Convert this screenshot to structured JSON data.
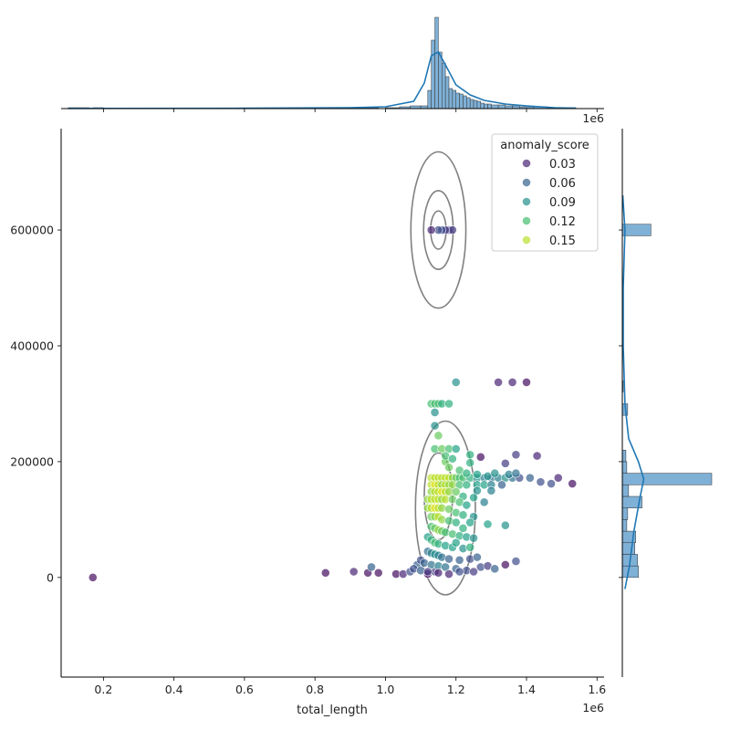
{
  "chart_data": {
    "type": "scatter",
    "title": "",
    "xlabel": "total_length",
    "ylabel": "",
    "x_offset_label": "1e6",
    "top_offset_label": "1e6",
    "xlim": [
      0.08,
      1.62
    ],
    "ylim": [
      -172000,
      775000
    ],
    "x_ticks": [
      0.2,
      0.4,
      0.6,
      0.8,
      1.0,
      1.2,
      1.4,
      1.6
    ],
    "x_tick_labels": [
      "0.2",
      "0.4",
      "0.6",
      "0.8",
      "1.0",
      "1.2",
      "1.4",
      "1.6"
    ],
    "y_ticks": [
      0,
      200000,
      400000,
      600000
    ],
    "y_tick_labels": [
      "0",
      "200000",
      "400000",
      "600000"
    ],
    "grid": false,
    "legend": {
      "title": "anomaly_score",
      "placement": "top-right",
      "entries": [
        {
          "label": "0.03",
          "value": 0.03
        },
        {
          "label": "0.06",
          "value": 0.06
        },
        {
          "label": "0.09",
          "value": 0.09
        },
        {
          "label": "0.12",
          "value": 0.12
        },
        {
          "label": "0.15",
          "value": 0.15
        }
      ]
    },
    "colormap": "viridis",
    "color_range": [
      0.015,
      0.165
    ],
    "point_color_alpha": 0.7,
    "points": [
      [
        0.17,
        0,
        0.02
      ],
      [
        0.83,
        8000,
        0.02
      ],
      [
        0.91,
        10000,
        0.03
      ],
      [
        0.95,
        8000,
        0.02
      ],
      [
        0.98,
        8000,
        0.02
      ],
      [
        1.03,
        6000,
        0.02
      ],
      [
        1.05,
        6000,
        0.03
      ],
      [
        1.07,
        10000,
        0.05
      ],
      [
        1.09,
        22000,
        0.06
      ],
      [
        1.12,
        6000,
        0.02
      ],
      [
        1.14,
        10000,
        0.04
      ],
      [
        0.96,
        18000,
        0.06
      ],
      [
        1.18,
        600000,
        0.04
      ],
      [
        1.19,
        600000,
        0.04
      ],
      [
        1.17,
        600000,
        0.04
      ],
      [
        1.16,
        600000,
        0.05
      ],
      [
        1.15,
        600000,
        0.05
      ],
      [
        1.13,
        600000,
        0.03
      ],
      [
        1.2,
        337000,
        0.09
      ],
      [
        1.32,
        337000,
        0.03
      ],
      [
        1.36,
        337000,
        0.03
      ],
      [
        1.4,
        337000,
        0.02
      ],
      [
        1.13,
        300000,
        0.12
      ],
      [
        1.14,
        300000,
        0.12
      ],
      [
        1.15,
        300000,
        0.12
      ],
      [
        1.16,
        300000,
        0.11
      ],
      [
        1.18,
        300000,
        0.11
      ],
      [
        1.14,
        285000,
        0.09
      ],
      [
        1.14,
        262000,
        0.09
      ],
      [
        1.15,
        245000,
        0.13
      ],
      [
        1.14,
        222000,
        0.12
      ],
      [
        1.16,
        222000,
        0.13
      ],
      [
        1.18,
        222000,
        0.12
      ],
      [
        1.2,
        222000,
        0.1
      ],
      [
        1.24,
        212000,
        0.11
      ],
      [
        1.27,
        208000,
        0.02
      ],
      [
        1.34,
        197000,
        0.04
      ],
      [
        1.37,
        212000,
        0.04
      ],
      [
        1.43,
        210000,
        0.03
      ],
      [
        1.13,
        172000,
        0.15
      ],
      [
        1.14,
        172000,
        0.15
      ],
      [
        1.15,
        172000,
        0.15
      ],
      [
        1.16,
        172000,
        0.15
      ],
      [
        1.17,
        172000,
        0.15
      ],
      [
        1.18,
        172000,
        0.15
      ],
      [
        1.19,
        172000,
        0.14
      ],
      [
        1.2,
        172000,
        0.13
      ],
      [
        1.21,
        172000,
        0.12
      ],
      [
        1.22,
        172000,
        0.12
      ],
      [
        1.24,
        172000,
        0.11
      ],
      [
        1.26,
        172000,
        0.09
      ],
      [
        1.28,
        172000,
        0.08
      ],
      [
        1.3,
        172000,
        0.07
      ],
      [
        1.32,
        172000,
        0.08
      ],
      [
        1.34,
        172000,
        0.09
      ],
      [
        1.36,
        172000,
        0.07
      ],
      [
        1.38,
        172000,
        0.05
      ],
      [
        1.41,
        172000,
        0.06
      ],
      [
        1.44,
        165000,
        0.05
      ],
      [
        1.47,
        162000,
        0.05
      ],
      [
        1.49,
        172000,
        0.03
      ],
      [
        1.53,
        162000,
        0.02
      ],
      [
        1.13,
        160000,
        0.15
      ],
      [
        1.14,
        160000,
        0.16
      ],
      [
        1.15,
        160000,
        0.15
      ],
      [
        1.16,
        160000,
        0.14
      ],
      [
        1.17,
        160000,
        0.15
      ],
      [
        1.18,
        160000,
        0.14
      ],
      [
        1.19,
        160000,
        0.14
      ],
      [
        1.21,
        160000,
        0.12
      ],
      [
        1.23,
        160000,
        0.11
      ],
      [
        1.26,
        160000,
        0.1
      ],
      [
        1.28,
        160000,
        0.1
      ],
      [
        1.3,
        160000,
        0.08
      ],
      [
        1.33,
        160000,
        0.06
      ],
      [
        1.13,
        148000,
        0.14
      ],
      [
        1.14,
        148000,
        0.15
      ],
      [
        1.15,
        148000,
        0.15
      ],
      [
        1.16,
        148000,
        0.16
      ],
      [
        1.17,
        148000,
        0.15
      ],
      [
        1.18,
        148000,
        0.14
      ],
      [
        1.2,
        148000,
        0.13
      ],
      [
        1.22,
        140000,
        0.11
      ],
      [
        1.25,
        138000,
        0.1
      ],
      [
        1.3,
        150000,
        0.08
      ],
      [
        1.12,
        135000,
        0.14
      ],
      [
        1.13,
        135000,
        0.15
      ],
      [
        1.14,
        135000,
        0.15
      ],
      [
        1.15,
        135000,
        0.15
      ],
      [
        1.16,
        135000,
        0.14
      ],
      [
        1.17,
        135000,
        0.15
      ],
      [
        1.19,
        135000,
        0.13
      ],
      [
        1.21,
        130000,
        0.12
      ],
      [
        1.23,
        125000,
        0.1
      ],
      [
        1.12,
        120000,
        0.14
      ],
      [
        1.13,
        120000,
        0.15
      ],
      [
        1.14,
        120000,
        0.16
      ],
      [
        1.15,
        120000,
        0.15
      ],
      [
        1.16,
        120000,
        0.14
      ],
      [
        1.18,
        118000,
        0.13
      ],
      [
        1.2,
        112000,
        0.12
      ],
      [
        1.22,
        108000,
        0.11
      ],
      [
        1.25,
        105000,
        0.09
      ],
      [
        1.13,
        105000,
        0.13
      ],
      [
        1.14,
        105000,
        0.14
      ],
      [
        1.15,
        105000,
        0.15
      ],
      [
        1.16,
        100000,
        0.14
      ],
      [
        1.18,
        98000,
        0.12
      ],
      [
        1.2,
        95000,
        0.11
      ],
      [
        1.29,
        92000,
        0.1
      ],
      [
        1.34,
        90000,
        0.09
      ],
      [
        1.13,
        88000,
        0.12
      ],
      [
        1.14,
        85000,
        0.13
      ],
      [
        1.15,
        82000,
        0.14
      ],
      [
        1.16,
        80000,
        0.13
      ],
      [
        1.17,
        78000,
        0.12
      ],
      [
        1.19,
        75000,
        0.12
      ],
      [
        1.21,
        72000,
        0.11
      ],
      [
        1.23,
        70000,
        0.1
      ],
      [
        1.25,
        68000,
        0.09
      ],
      [
        1.12,
        70000,
        0.1
      ],
      [
        1.13,
        65000,
        0.11
      ],
      [
        1.14,
        60000,
        0.12
      ],
      [
        1.15,
        58000,
        0.11
      ],
      [
        1.17,
        55000,
        0.1
      ],
      [
        1.19,
        52000,
        0.1
      ],
      [
        1.22,
        50000,
        0.09
      ],
      [
        1.24,
        52000,
        0.11
      ],
      [
        1.12,
        45000,
        0.07
      ],
      [
        1.13,
        42000,
        0.08
      ],
      [
        1.14,
        40000,
        0.09
      ],
      [
        1.15,
        38000,
        0.08
      ],
      [
        1.16,
        35000,
        0.07
      ],
      [
        1.18,
        32000,
        0.06
      ],
      [
        1.21,
        30000,
        0.06
      ],
      [
        1.24,
        32000,
        0.05
      ],
      [
        1.26,
        35000,
        0.06
      ],
      [
        1.1,
        30000,
        0.05
      ],
      [
        1.11,
        25000,
        0.06
      ],
      [
        1.13,
        22000,
        0.07
      ],
      [
        1.15,
        20000,
        0.08
      ],
      [
        1.17,
        18000,
        0.07
      ],
      [
        1.2,
        15000,
        0.06
      ],
      [
        1.23,
        12000,
        0.05
      ],
      [
        1.25,
        10000,
        0.04
      ],
      [
        1.27,
        18000,
        0.05
      ],
      [
        1.29,
        20000,
        0.04
      ],
      [
        1.31,
        15000,
        0.06
      ],
      [
        1.34,
        22000,
        0.02
      ],
      [
        1.37,
        28000,
        0.05
      ],
      [
        1.08,
        15000,
        0.05
      ],
      [
        1.1,
        12000,
        0.06
      ],
      [
        1.12,
        10000,
        0.04
      ],
      [
        1.15,
        8000,
        0.03
      ],
      [
        1.18,
        6000,
        0.03
      ],
      [
        1.21,
        10000,
        0.05
      ],
      [
        1.2,
        60000,
        0.1
      ],
      [
        1.22,
        85000,
        0.11
      ],
      [
        1.24,
        95000,
        0.1
      ],
      [
        1.17,
        200000,
        0.13
      ],
      [
        1.18,
        190000,
        0.13
      ],
      [
        1.21,
        185000,
        0.12
      ],
      [
        1.23,
        180000,
        0.11
      ],
      [
        1.26,
        178000,
        0.1
      ],
      [
        1.29,
        175000,
        0.09
      ],
      [
        1.31,
        180000,
        0.09
      ],
      [
        1.35,
        178000,
        0.08
      ],
      [
        1.37,
        180000,
        0.07
      ],
      [
        1.26,
        150000,
        0.09
      ],
      [
        1.28,
        130000,
        0.08
      ],
      [
        1.24,
        198000,
        0.11
      ],
      [
        1.17,
        210000,
        0.12
      ],
      [
        1.19,
        205000,
        0.11
      ]
    ],
    "top_histogram": {
      "bins": [
        [
          0.1,
          0.16,
          1
        ],
        [
          0.17,
          0.2,
          1
        ],
        [
          0.8,
          0.84,
          1
        ],
        [
          0.9,
          0.95,
          1
        ],
        [
          0.95,
          0.98,
          1
        ],
        [
          1.0,
          1.04,
          1
        ],
        [
          1.04,
          1.07,
          2
        ],
        [
          1.07,
          1.1,
          3
        ],
        [
          1.1,
          1.12,
          3
        ],
        [
          1.12,
          1.13,
          20
        ],
        [
          1.13,
          1.14,
          75
        ],
        [
          1.14,
          1.15,
          100
        ],
        [
          1.15,
          1.16,
          62
        ],
        [
          1.16,
          1.17,
          50
        ],
        [
          1.17,
          1.18,
          35
        ],
        [
          1.18,
          1.19,
          22
        ],
        [
          1.19,
          1.2,
          20
        ],
        [
          1.2,
          1.21,
          17
        ],
        [
          1.21,
          1.22,
          16
        ],
        [
          1.22,
          1.23,
          14
        ],
        [
          1.23,
          1.24,
          12
        ],
        [
          1.24,
          1.25,
          10
        ],
        [
          1.25,
          1.26,
          9
        ],
        [
          1.26,
          1.27,
          8
        ],
        [
          1.27,
          1.28,
          6
        ],
        [
          1.28,
          1.29,
          5
        ],
        [
          1.29,
          1.3,
          5
        ],
        [
          1.3,
          1.32,
          4
        ],
        [
          1.32,
          1.34,
          4
        ],
        [
          1.34,
          1.36,
          3
        ],
        [
          1.36,
          1.38,
          3
        ],
        [
          1.38,
          1.42,
          2
        ],
        [
          1.42,
          1.46,
          2
        ],
        [
          1.46,
          1.5,
          1
        ],
        [
          1.5,
          1.54,
          1
        ]
      ],
      "kde": [
        [
          0.1,
          0.2
        ],
        [
          0.6,
          0.4
        ],
        [
          0.9,
          1
        ],
        [
          1.0,
          2
        ],
        [
          1.08,
          8
        ],
        [
          1.11,
          28
        ],
        [
          1.13,
          58
        ],
        [
          1.15,
          62
        ],
        [
          1.17,
          48
        ],
        [
          1.2,
          26
        ],
        [
          1.24,
          15
        ],
        [
          1.28,
          9
        ],
        [
          1.34,
          5
        ],
        [
          1.4,
          3
        ],
        [
          1.48,
          1
        ],
        [
          1.54,
          0.5
        ]
      ],
      "max": 100
    },
    "right_histogram": {
      "bins": [
        [
          0,
          20000,
          18
        ],
        [
          20000,
          40000,
          17
        ],
        [
          40000,
          60000,
          14
        ],
        [
          60000,
          80000,
          15
        ],
        [
          80000,
          100000,
          5
        ],
        [
          100000,
          120000,
          6
        ],
        [
          120000,
          140000,
          22
        ],
        [
          140000,
          160000,
          7
        ],
        [
          160000,
          180000,
          100
        ],
        [
          180000,
          200000,
          5
        ],
        [
          200000,
          220000,
          4
        ],
        [
          280000,
          300000,
          6
        ],
        [
          320000,
          340000,
          1
        ],
        [
          590000,
          610000,
          32
        ]
      ],
      "kde": [
        [
          -20000,
          3
        ],
        [
          20000,
          8
        ],
        [
          80000,
          13
        ],
        [
          140000,
          20
        ],
        [
          170000,
          24
        ],
        [
          200000,
          18
        ],
        [
          240000,
          7
        ],
        [
          300000,
          3
        ],
        [
          400000,
          1
        ],
        [
          500000,
          1
        ],
        [
          600000,
          3
        ],
        [
          660000,
          0.5
        ]
      ],
      "max": 100
    },
    "contours": [
      {
        "cx": 1.15,
        "cy": 600000,
        "rx": 0.022,
        "ry": 33000
      },
      {
        "cx": 1.15,
        "cy": 600000,
        "rx": 0.042,
        "ry": 68000
      },
      {
        "cx": 1.15,
        "cy": 600000,
        "rx": 0.078,
        "ry": 135000
      },
      {
        "cx": 1.15,
        "cy": 140000,
        "rx": 0.04,
        "ry": 75000
      },
      {
        "cx": 1.17,
        "cy": 120000,
        "rx": 0.085,
        "ry": 150000
      }
    ]
  }
}
